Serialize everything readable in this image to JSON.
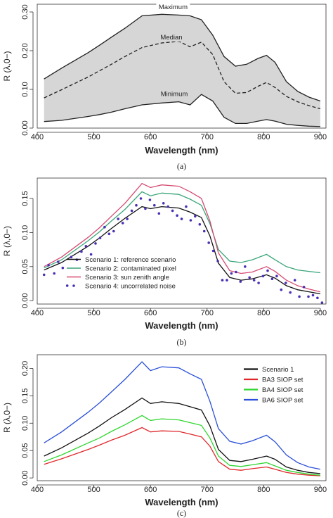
{
  "chart_data": [
    {
      "panel": "(a)",
      "type": "area",
      "xlabel": "Wavelength (nm)",
      "ylabel": "R (λ,0−)",
      "xlim": [
        400,
        910
      ],
      "ylim": [
        0,
        0.32
      ],
      "xticks": [
        "400",
        "500",
        "600",
        "700",
        "800",
        "900"
      ],
      "yticks": [
        "0.00",
        "0.10",
        "0.20",
        "0.30"
      ],
      "yticks_val": [
        0,
        0.1,
        0.2,
        0.3
      ],
      "annotations": [
        {
          "text": "Maximum",
          "x": 640,
          "y": 0.307
        },
        {
          "text": "Median",
          "x": 637,
          "y": 0.229
        },
        {
          "text": "Minimum",
          "x": 642,
          "y": 0.083
        }
      ],
      "x": [
        412,
        443,
        490,
        510,
        531,
        555,
        585,
        620,
        650,
        670,
        690,
        710,
        730,
        750,
        770,
        790,
        805,
        820,
        840,
        860,
        880,
        900
      ],
      "series": [
        {
          "name": "Maximum",
          "style": "solid",
          "values": [
            0.127,
            0.155,
            0.195,
            0.214,
            0.235,
            0.258,
            0.29,
            0.294,
            0.292,
            0.29,
            0.28,
            0.24,
            0.185,
            0.16,
            0.165,
            0.18,
            0.188,
            0.17,
            0.12,
            0.095,
            0.08,
            0.07
          ]
        },
        {
          "name": "Median",
          "style": "dashed",
          "values": [
            0.078,
            0.099,
            0.132,
            0.148,
            0.165,
            0.185,
            0.208,
            0.22,
            0.224,
            0.21,
            0.222,
            0.19,
            0.12,
            0.09,
            0.092,
            0.108,
            0.118,
            0.105,
            0.082,
            0.068,
            0.058,
            0.05
          ]
        },
        {
          "name": "Minimum",
          "style": "solid",
          "values": [
            0.017,
            0.02,
            0.03,
            0.035,
            0.041,
            0.05,
            0.06,
            0.065,
            0.068,
            0.06,
            0.087,
            0.07,
            0.028,
            0.012,
            0.012,
            0.018,
            0.022,
            0.018,
            0.01,
            0.007,
            0.005,
            0.004
          ]
        }
      ],
      "fill_color": "#d6d6d6",
      "line_color": "#222222",
      "caption": "(a)"
    },
    {
      "panel": "(b)",
      "type": "line",
      "xlabel": "Wavelength (nm)",
      "ylabel": "R (λ,0−)",
      "xlim": [
        400,
        910
      ],
      "ylim": [
        -0.005,
        0.18
      ],
      "xticks": [
        "400",
        "500",
        "600",
        "700",
        "800",
        "900"
      ],
      "yticks": [
        "0.00",
        "0.05",
        "0.10",
        "0.15"
      ],
      "yticks_val": [
        0,
        0.05,
        0.1,
        0.15
      ],
      "legend": [
        "Scenario 1: reference scenario",
        "Scenario 2: contaminated pixel",
        "Scenario 3: sun zenith angle",
        "Scenario 4: uncorrelated noise"
      ],
      "legend_position": "bottom-left",
      "x": [
        412,
        443,
        490,
        510,
        531,
        555,
        585,
        600,
        620,
        650,
        670,
        690,
        705,
        720,
        740,
        760,
        780,
        805,
        820,
        840,
        860,
        880,
        900
      ],
      "series": [
        {
          "name": "Scenario 1: reference scenario",
          "color": "#111111",
          "style": "solid",
          "values": [
            0.045,
            0.056,
            0.08,
            0.092,
            0.106,
            0.121,
            0.138,
            0.135,
            0.138,
            0.136,
            0.13,
            0.122,
            0.095,
            0.055,
            0.034,
            0.03,
            0.032,
            0.038,
            0.033,
            0.022,
            0.016,
            0.013,
            0.01
          ]
        },
        {
          "name": "Scenario 2: contaminated pixel",
          "color": "#3aa57a",
          "style": "solid",
          "values": [
            0.048,
            0.06,
            0.088,
            0.101,
            0.117,
            0.134,
            0.16,
            0.154,
            0.158,
            0.156,
            0.149,
            0.14,
            0.113,
            0.075,
            0.058,
            0.056,
            0.06,
            0.068,
            0.06,
            0.05,
            0.045,
            0.043,
            0.041
          ]
        },
        {
          "name": "Scenario 3: sun zenith angle",
          "color": "#d64a72",
          "style": "solid",
          "values": [
            0.05,
            0.064,
            0.093,
            0.107,
            0.124,
            0.143,
            0.172,
            0.166,
            0.17,
            0.168,
            0.16,
            0.15,
            0.117,
            0.07,
            0.044,
            0.04,
            0.042,
            0.05,
            0.043,
            0.03,
            0.022,
            0.017,
            0.013
          ]
        },
        {
          "name": "Scenario 4: uncorrelated noise",
          "color": "#4b2fb5",
          "style": "points",
          "x": [
            412,
            420,
            430,
            437,
            445,
            453,
            460,
            470,
            478,
            486,
            495,
            503,
            511,
            519,
            527,
            535,
            543,
            551,
            559,
            567,
            575,
            583,
            591,
            599,
            607,
            615,
            623,
            631,
            639,
            647,
            655,
            663,
            671,
            679,
            687,
            695,
            703,
            711,
            719,
            727,
            735,
            743,
            751,
            759,
            767,
            775,
            783,
            791,
            799,
            807,
            815,
            823,
            831,
            839,
            847,
            855,
            863,
            871,
            879,
            887,
            895,
            903
          ],
          "values": [
            0.038,
            0.052,
            0.04,
            0.057,
            0.048,
            0.022,
            0.064,
            0.06,
            0.072,
            0.08,
            0.068,
            0.084,
            0.092,
            0.108,
            0.098,
            0.102,
            0.12,
            0.114,
            0.12,
            0.132,
            0.14,
            0.15,
            0.135,
            0.148,
            0.14,
            0.128,
            0.143,
            0.138,
            0.132,
            0.125,
            0.12,
            0.138,
            0.118,
            0.124,
            0.112,
            0.102,
            0.085,
            0.073,
            0.058,
            0.03,
            0.03,
            0.04,
            0.042,
            0.028,
            0.05,
            0.034,
            0.03,
            0.026,
            0.036,
            0.044,
            0.032,
            0.036,
            0.016,
            0.026,
            0.012,
            0.03,
            0.006,
            0.02,
            0.006,
            0.008,
            0.004,
            -0.003
          ]
        }
      ],
      "caption": "(b)"
    },
    {
      "panel": "(c)",
      "type": "line",
      "xlabel": "Wavelength (nm)",
      "ylabel": "R (λ,0−)",
      "xlim": [
        400,
        910
      ],
      "ylim": [
        -0.005,
        0.225
      ],
      "xticks": [
        "400",
        "500",
        "600",
        "700",
        "800",
        "900"
      ],
      "yticks": [
        "0.00",
        "0.05",
        "0.10",
        "0.15",
        "0.20"
      ],
      "yticks_val": [
        0,
        0.05,
        0.1,
        0.15,
        0.2
      ],
      "legend": [
        "Scenario 1",
        "BA3 SIOP set",
        "BA4 SIOP set",
        "BA6 SIOP set"
      ],
      "legend_position": "top-right",
      "x": [
        412,
        443,
        490,
        510,
        531,
        555,
        585,
        600,
        620,
        650,
        670,
        690,
        705,
        720,
        740,
        760,
        780,
        805,
        820,
        840,
        860,
        880,
        900
      ],
      "series": [
        {
          "name": "Scenario 1",
          "color": "#111111",
          "values": [
            0.04,
            0.055,
            0.082,
            0.095,
            0.11,
            0.125,
            0.146,
            0.136,
            0.139,
            0.136,
            0.13,
            0.124,
            0.095,
            0.052,
            0.032,
            0.03,
            0.034,
            0.04,
            0.034,
            0.02,
            0.014,
            0.01,
            0.008
          ]
        },
        {
          "name": "BA3 SIOP set",
          "color": "#e0282b",
          "values": [
            0.025,
            0.035,
            0.052,
            0.06,
            0.069,
            0.078,
            0.092,
            0.084,
            0.086,
            0.085,
            0.08,
            0.075,
            0.058,
            0.03,
            0.016,
            0.014,
            0.017,
            0.02,
            0.016,
            0.01,
            0.007,
            0.005,
            0.004
          ]
        },
        {
          "name": "BA4 SIOP set",
          "color": "#2fd62f",
          "values": [
            0.03,
            0.042,
            0.064,
            0.073,
            0.085,
            0.097,
            0.114,
            0.105,
            0.108,
            0.106,
            0.101,
            0.096,
            0.073,
            0.04,
            0.023,
            0.021,
            0.024,
            0.028,
            0.022,
            0.014,
            0.01,
            0.007,
            0.005
          ]
        },
        {
          "name": "BA6 SIOP set",
          "color": "#2a4fd8",
          "values": [
            0.064,
            0.084,
            0.12,
            0.137,
            0.157,
            0.18,
            0.212,
            0.196,
            0.203,
            0.201,
            0.19,
            0.18,
            0.14,
            0.09,
            0.067,
            0.062,
            0.068,
            0.078,
            0.066,
            0.042,
            0.028,
            0.02,
            0.016
          ]
        }
      ],
      "caption": "(c)"
    }
  ]
}
